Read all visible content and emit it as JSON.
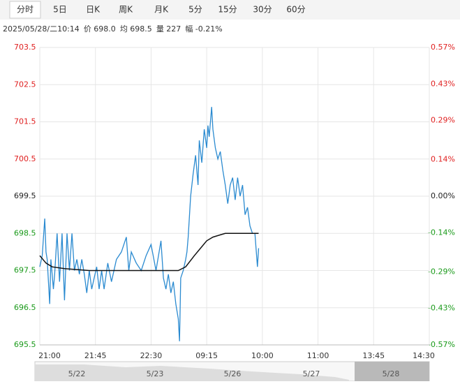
{
  "tabs": [
    "分时",
    "5日",
    "日K",
    "周K",
    "月K",
    "5分",
    "15分",
    "30分",
    "60分"
  ],
  "info": [
    "2025/05/28/二10:14",
    "价 698.0",
    "均 698.5",
    "量 227",
    "幅 -0.21%"
  ],
  "chart_data": {
    "type": "line",
    "series": [
      {
        "name": "价",
        "color": "#2a8ad0",
        "x": [
          0,
          2,
          4,
          5,
          6,
          8,
          9,
          11,
          12,
          14,
          16,
          18,
          20,
          22,
          24,
          26,
          28,
          30,
          32,
          34,
          36,
          38,
          40,
          42,
          44,
          46,
          48,
          50,
          52,
          55,
          58,
          62,
          66,
          70,
          72,
          74,
          78,
          82,
          86,
          90,
          94,
          98,
          100,
          102,
          104,
          106,
          108,
          110,
          112,
          113,
          114,
          116,
          118,
          119,
          120,
          122,
          124,
          126,
          128,
          129,
          131,
          133,
          135,
          136,
          137,
          138,
          139,
          140,
          142,
          144,
          146,
          148,
          150,
          152,
          154,
          156,
          158,
          160,
          162,
          164,
          166,
          168,
          170,
          172,
          174,
          176,
          177
        ],
        "values": [
          697.6,
          697.9,
          698.9,
          698.0,
          697.8,
          696.6,
          697.8,
          697.0,
          697.4,
          698.5,
          697.2,
          698.5,
          696.7,
          698.5,
          697.5,
          698.5,
          697.5,
          697.8,
          697.4,
          697.8,
          697.4,
          696.9,
          697.5,
          697.0,
          697.3,
          697.6,
          697.0,
          697.5,
          697.0,
          697.7,
          697.2,
          697.8,
          698.0,
          698.4,
          697.5,
          698.0,
          697.7,
          697.5,
          697.9,
          698.2,
          697.5,
          698.3,
          697.3,
          697.0,
          697.4,
          696.9,
          697.2,
          696.6,
          696.2,
          695.6,
          697.3,
          697.5,
          697.8,
          698.0,
          698.4,
          699.5,
          700.1,
          700.6,
          699.8,
          701.0,
          700.4,
          701.3,
          700.8,
          701.4,
          701.1,
          701.5,
          701.9,
          701.3,
          700.8,
          700.5,
          700.7,
          700.2,
          699.8,
          699.3,
          699.8,
          700.0,
          699.4,
          700.0,
          699.5,
          699.8,
          699.0,
          699.2,
          698.7,
          698.5,
          698.5,
          697.6,
          698.1
        ]
      },
      {
        "name": "均",
        "color": "#111111",
        "x": [
          0,
          5,
          10,
          20,
          40,
          70,
          100,
          112,
          118,
          125,
          130,
          135,
          140,
          145,
          150,
          160,
          170,
          177
        ],
        "values": [
          697.9,
          697.7,
          697.6,
          697.55,
          697.5,
          697.5,
          697.5,
          697.5,
          697.6,
          697.9,
          698.1,
          698.3,
          698.4,
          698.45,
          698.5,
          698.5,
          698.5,
          698.5
        ]
      }
    ],
    "xlim": [
      0,
      315
    ],
    "xticks": [
      {
        "value": 0,
        "label": "21:00"
      },
      {
        "value": 45,
        "label": "21:45"
      },
      {
        "value": 90,
        "label": "22:30"
      },
      {
        "value": 135,
        "label": "09:15"
      },
      {
        "value": 180,
        "label": "10:00"
      },
      {
        "value": 225,
        "label": "11:00"
      },
      {
        "value": 270,
        "label": "13:45"
      },
      {
        "value": 315,
        "label": "14:30"
      }
    ],
    "ylim": [
      695.5,
      703.5
    ],
    "yticks": [
      703.5,
      702.5,
      701.5,
      700.5,
      699.5,
      698.5,
      697.5,
      696.5,
      695.5
    ],
    "y2lim": [
      -0.57,
      0.57
    ],
    "y2ticks": [
      {
        "value": 0.57,
        "label": "0.57%"
      },
      {
        "value": 0.43,
        "label": "0.43%"
      },
      {
        "value": 0.29,
        "label": "0.29%"
      },
      {
        "value": 0.14,
        "label": "0.14%"
      },
      {
        "value": 0,
        "label": "0.00%"
      },
      {
        "value": -0.14,
        "label": "-0.14%"
      },
      {
        "value": -0.29,
        "label": "-0.29%"
      },
      {
        "value": -0.43,
        "label": "-0.43%"
      },
      {
        "value": -0.57,
        "label": "-0.57%"
      }
    ],
    "grid": true
  },
  "navigator": {
    "dates": [
      "5/22",
      "5/23",
      "5/26",
      "5/27",
      "5/28"
    ]
  }
}
